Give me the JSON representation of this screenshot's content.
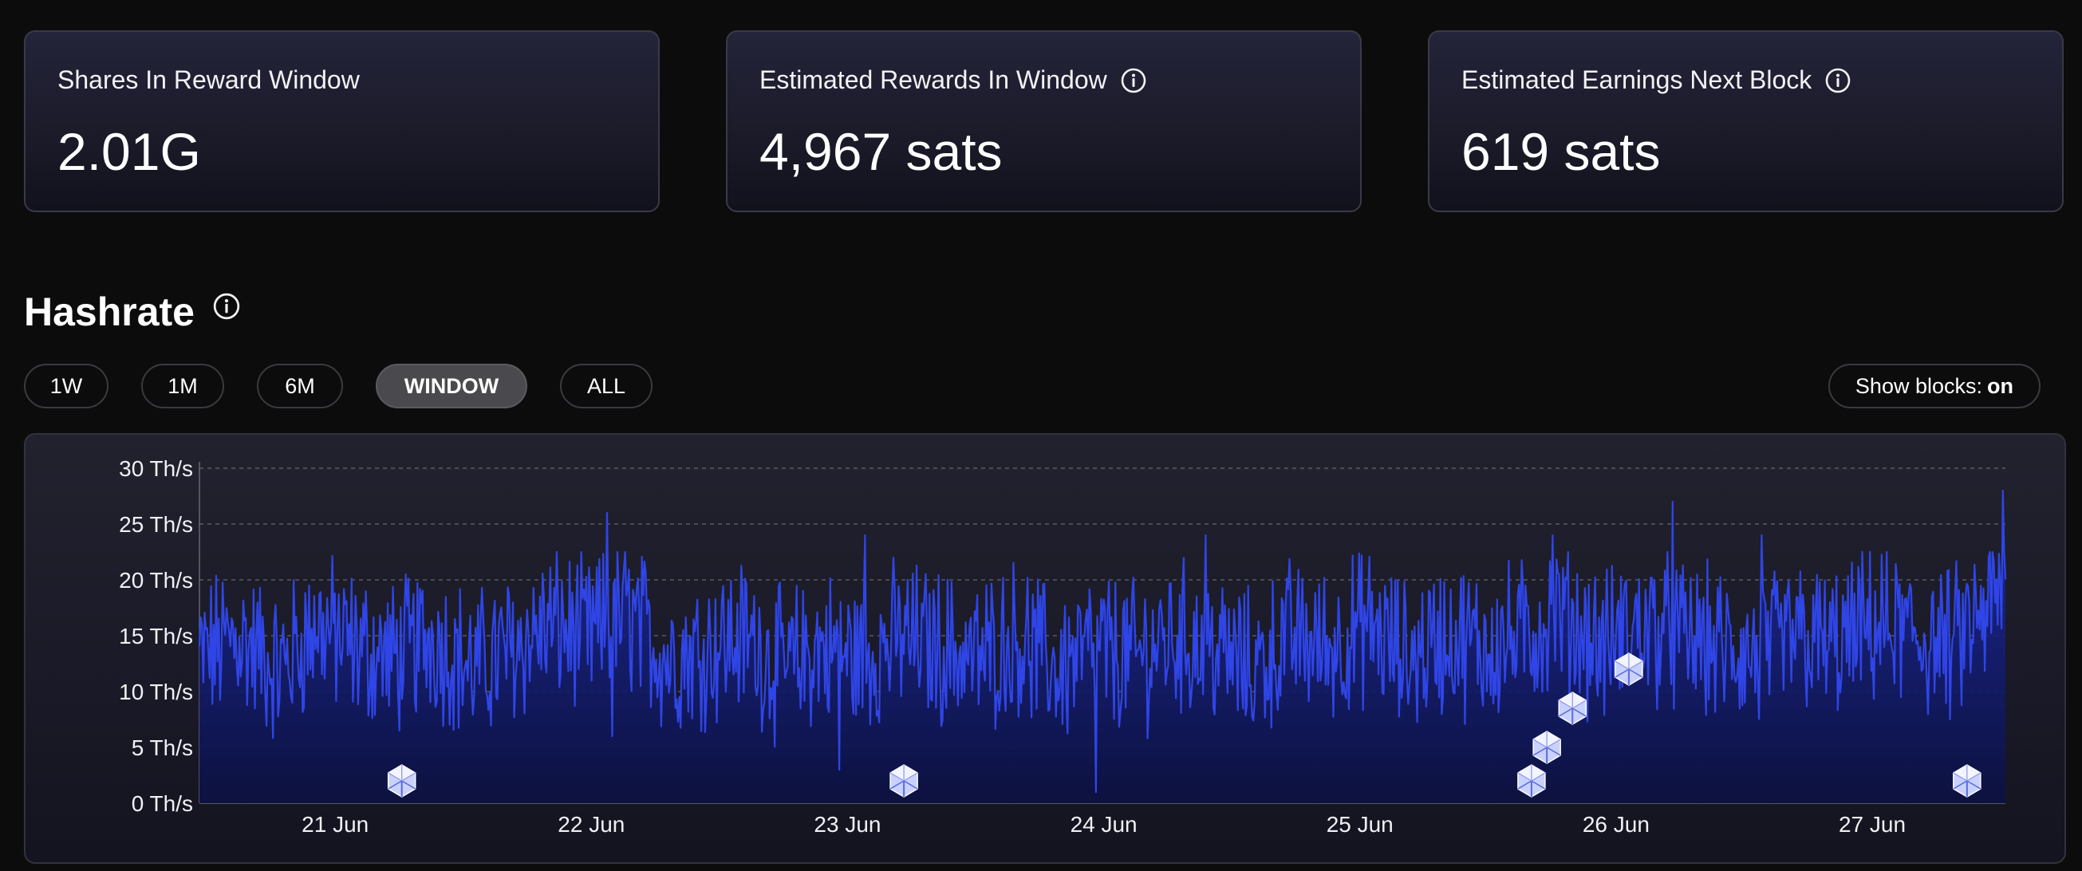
{
  "cards": [
    {
      "label": "Shares In Reward Window",
      "value": "2.01G",
      "has_info": false
    },
    {
      "label": "Estimated Rewards In Window",
      "value": "4,967 sats",
      "has_info": true
    },
    {
      "label": "Estimated Earnings Next Block",
      "value": "619 sats",
      "has_info": true
    }
  ],
  "hashrate": {
    "title": "Hashrate",
    "ranges": [
      "1W",
      "1M",
      "6M",
      "WINDOW",
      "ALL"
    ],
    "active_range": "WINDOW",
    "show_blocks_label": "Show blocks:",
    "show_blocks_value": "on"
  },
  "colors": {
    "line": "#2f45e6",
    "fill_top": "#1a2a9a",
    "fill_bottom": "#0f1448",
    "block_icon": "#dfe4ff",
    "background": "#0c0c0d"
  },
  "icons": {
    "info": "info-circle-icon",
    "block": "block-cube-icon"
  },
  "chart_data": {
    "type": "area",
    "y_ticks": [
      "0 Th/s",
      "5 Th/s",
      "10 Th/s",
      "15 Th/s",
      "20 Th/s",
      "25 Th/s",
      "30 Th/s"
    ],
    "y_tick_values": [
      0,
      5,
      10,
      15,
      20,
      25,
      30
    ],
    "ylim": [
      0,
      30
    ],
    "x_ticks": [
      "21 Jun",
      "22 Jun",
      "23 Jun",
      "24 Jun",
      "25 Jun",
      "26 Jun",
      "27 Jun"
    ],
    "x_tick_days": [
      21,
      22,
      23,
      24,
      25,
      26,
      27
    ],
    "xlim_days": [
      20.47,
      27.52
    ],
    "grid": "horizontal-dashed",
    "series": [
      {
        "x_days": [
          20.47,
          20.62,
          20.78,
          20.93,
          21.08,
          21.23,
          21.38,
          21.54,
          21.69,
          21.84,
          21.99,
          22.14,
          22.3,
          22.45,
          22.6,
          22.75,
          22.9,
          23.06,
          23.21,
          23.36,
          23.51,
          23.66,
          23.82,
          23.97,
          24.12,
          24.27,
          24.42,
          24.58,
          24.73,
          24.88,
          25.03,
          25.18,
          25.34,
          25.49,
          25.64,
          25.79,
          25.94,
          26.1,
          26.25,
          26.4,
          26.55,
          26.7,
          26.86,
          27.01,
          27.16,
          27.31,
          27.52
        ],
        "values": [
          13,
          15,
          12,
          16,
          14,
          13,
          15,
          12,
          14,
          16,
          15,
          17,
          13,
          14,
          15,
          12,
          14,
          13,
          15,
          14,
          13,
          15,
          12,
          14,
          13,
          15,
          14,
          12,
          15,
          14,
          16,
          13,
          15,
          14,
          15,
          17,
          14,
          16,
          15,
          14,
          13,
          15,
          14,
          16,
          15,
          14,
          19
        ],
        "peaks": [
          {
            "x_day": 22.06,
            "value": 26
          },
          {
            "x_day": 22.08,
            "value": 6
          },
          {
            "x_day": 22.97,
            "value": 3
          },
          {
            "x_day": 23.07,
            "value": 24
          },
          {
            "x_day": 23.97,
            "value": 1
          },
          {
            "x_day": 24.4,
            "value": 24
          },
          {
            "x_day": 25.75,
            "value": 24
          },
          {
            "x_day": 26.22,
            "value": 27
          },
          {
            "x_day": 26.57,
            "value": 24
          },
          {
            "x_day": 27.51,
            "value": 28
          }
        ]
      }
    ],
    "blocks": [
      {
        "x_day": 21.26,
        "value": 2
      },
      {
        "x_day": 23.22,
        "value": 2
      },
      {
        "x_day": 25.67,
        "value": 2
      },
      {
        "x_day": 25.73,
        "value": 5
      },
      {
        "x_day": 25.83,
        "value": 8.5
      },
      {
        "x_day": 26.05,
        "value": 12
      },
      {
        "x_day": 27.37,
        "value": 2
      }
    ]
  }
}
